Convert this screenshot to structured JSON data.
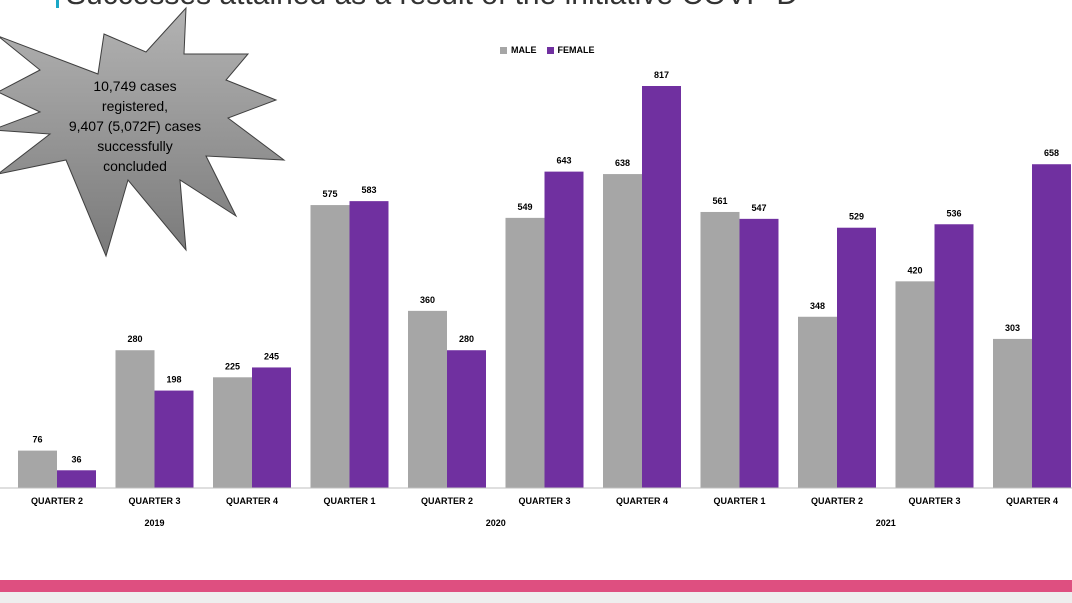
{
  "slide": {
    "title": "Successes attained as a result of the initiative COVP-D"
  },
  "callout": {
    "lines": [
      "10,749 cases",
      "registered,",
      "9,407 (5,072F) cases",
      "successfully",
      "concluded"
    ]
  },
  "colors": {
    "male": "#a6a6a6",
    "female": "#7030a0",
    "accent": "#de4f80",
    "callout": "#8c8c8c"
  },
  "chart_data": {
    "type": "bar",
    "categories": [
      "QUARTER 2",
      "QUARTER 3",
      "QUARTER 4",
      "QUARTER 1",
      "QUARTER 2",
      "QUARTER 3",
      "QUARTER 4",
      "QUARTER 1",
      "QUARTER 2",
      "QUARTER 3",
      "QUARTER 4"
    ],
    "year_groups": [
      {
        "label": "2019",
        "categories": [
          0,
          1,
          2
        ]
      },
      {
        "label": "2020",
        "categories": [
          3,
          4,
          5,
          6
        ]
      },
      {
        "label": "2021",
        "categories": [
          7,
          8,
          9,
          10
        ]
      }
    ],
    "series": [
      {
        "name": "MALE",
        "values": [
          76,
          280,
          225,
          575,
          360,
          549,
          638,
          561,
          348,
          420,
          303
        ]
      },
      {
        "name": "FEMALE",
        "values": [
          36,
          198,
          245,
          583,
          280,
          643,
          817,
          547,
          529,
          536,
          658
        ]
      }
    ],
    "data_labels": true,
    "legend_position": "top-center",
    "grid": false,
    "ylim": [
      0,
      817
    ]
  }
}
